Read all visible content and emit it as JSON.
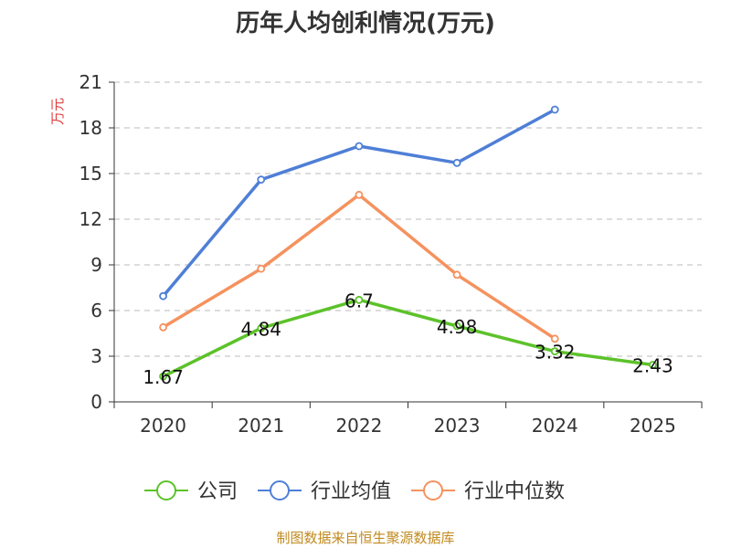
{
  "chart_data": {
    "type": "line",
    "title": "历年人均创利情况(万元)",
    "ylabel": "万元",
    "categories": [
      "2020",
      "2021",
      "2022",
      "2023",
      "2024",
      "2025"
    ],
    "ylim": [
      0,
      21
    ],
    "yticks": [
      0,
      3,
      6,
      9,
      12,
      15,
      18,
      21
    ],
    "grid": true,
    "legend_position": "bottom",
    "series": [
      {
        "name": "公司",
        "color": "#5cc22a",
        "values": [
          1.67,
          4.84,
          6.7,
          4.98,
          3.32,
          2.43
        ],
        "labels": [
          "1.67",
          "4.84",
          "6.7",
          "4.98",
          "3.32",
          "2.43"
        ]
      },
      {
        "name": "行业均值",
        "color": "#4f7fd6",
        "values": [
          6.95,
          14.6,
          16.8,
          15.7,
          19.2,
          null
        ]
      },
      {
        "name": "行业中位数",
        "color": "#f5925e",
        "values": [
          4.9,
          8.75,
          13.6,
          8.35,
          4.15,
          null
        ]
      }
    ],
    "source": "制图数据来自恒生聚源数据库"
  }
}
